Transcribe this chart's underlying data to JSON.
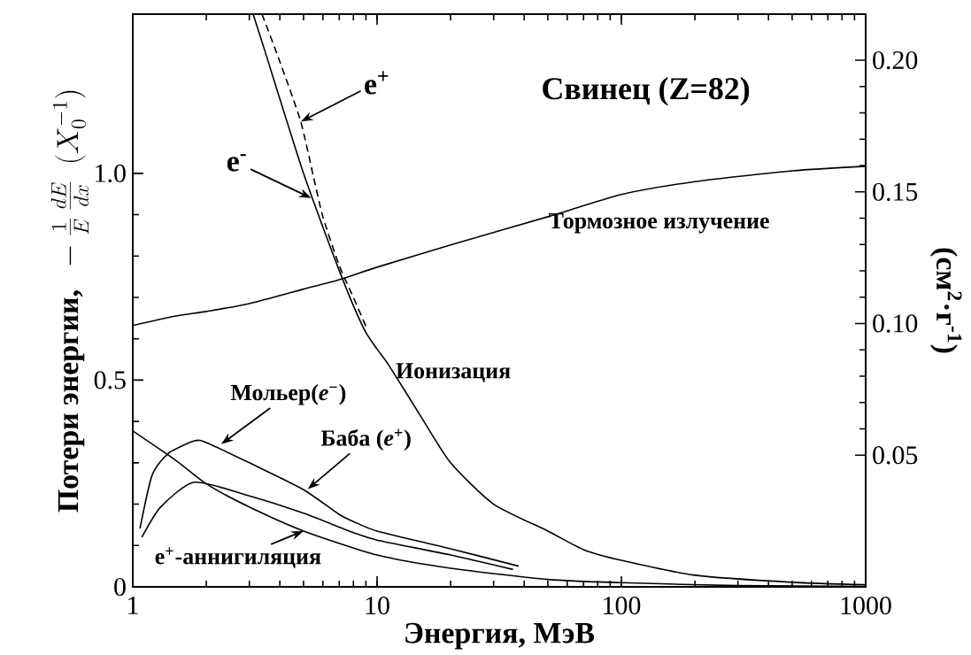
{
  "chart_data": {
    "type": "line",
    "title": "Свинец (Z=82)",
    "xlabel": "Энергия, МэВ",
    "ylabel": "\\mbox{\\bfseries Потери энергии,}\\ \\ -\\frac{1}{E}\\,\\frac{dE}{dx}\\ \\ (X_0^{-1})",
    "y2label": "(см$^{2}$·г$^{-1}$)",
    "log": "x",
    "xlim": [
      1,
      1000
    ],
    "xticks": [
      1,
      10,
      100,
      1000
    ],
    "ylim": [
      0,
      1.385
    ],
    "yticks": [
      0,
      0.5,
      {
        "value": 1,
        "label": "1.0"
      }
    ],
    "y2lim": [
      0,
      0.2175
    ],
    "y2ticks": [
      0.05,
      {
        "value": 0.1,
        "label": "0.10"
      },
      0.15,
      {
        "value": 0.2,
        "label": "0.20"
      }
    ],
    "series": [
      {
        "color": "#000000",
        "line_style": "solid",
        "x": [
          3.11,
          3.5,
          4,
          5,
          6,
          7,
          8,
          9,
          10,
          11.2,
          15,
          20,
          30,
          50,
          70,
          100,
          200,
          500,
          1000
        ],
        "values": [
          1.385,
          1.29,
          1.18,
          1.0,
          0.87,
          0.765,
          0.68,
          0.615,
          0.575,
          0.535,
          0.415,
          0.3,
          0.2,
          0.135,
          0.09,
          0.064,
          0.028,
          0.011,
          0.005
        ]
      },
      {
        "color": "#000000",
        "line_style": "dashed",
        "x": [
          3.38,
          4,
          4.87,
          5.5,
          6,
          7,
          8,
          9
        ],
        "values": [
          1.385,
          1.27,
          1.125,
          0.99,
          0.895,
          0.777,
          0.7,
          0.63
        ]
      },
      {
        "color": "#000000",
        "line_style": "solid",
        "x": [
          1,
          1.5,
          2,
          3,
          5,
          7,
          10,
          20,
          50,
          100,
          200,
          500,
          1000
        ],
        "values": [
          0.632,
          0.655,
          0.666,
          0.685,
          0.72,
          0.743,
          0.773,
          0.827,
          0.895,
          0.949,
          0.98,
          1.006,
          1.017
        ]
      },
      {
        "color": "#000000",
        "line_style": "solid",
        "x": [
          1.07,
          1.2,
          1.4,
          1.79,
          2,
          3,
          5,
          7,
          8,
          10,
          20,
          38
        ],
        "values": [
          0.141,
          0.27,
          0.323,
          0.353,
          0.349,
          0.3,
          0.235,
          0.175,
          0.158,
          0.135,
          0.092,
          0.05
        ]
      },
      {
        "color": "#000000",
        "line_style": "solid",
        "x": [
          1.09,
          1.3,
          1.79,
          3,
          5,
          8,
          10,
          20,
          36
        ],
        "values": [
          0.12,
          0.193,
          0.253,
          0.22,
          0.178,
          0.131,
          0.113,
          0.077,
          0.042
        ]
      },
      {
        "color": "#000000",
        "line_style": "solid",
        "x": [
          1,
          1.5,
          2,
          3,
          5,
          10,
          20,
          50,
          100,
          300,
          1000
        ],
        "values": [
          0.377,
          0.306,
          0.249,
          0.193,
          0.135,
          0.077,
          0.045,
          0.018,
          0.01,
          0.003,
          0.001
        ]
      }
    ],
    "annotations": [
      {
        "text": "e$^{+}$",
        "x": 4.87,
        "y": 1.125
      },
      {
        "text": "e$^{-}$",
        "x": 5.38,
        "y": 0.94
      },
      {
        "text": "Тормозное излучение",
        "x": 150,
        "y": 0.965
      },
      {
        "text": "Ионизация",
        "x": 11.2,
        "y": 0.535
      },
      {
        "text": "Мольер(*e*$^{−}$)",
        "x": 2.3,
        "y": 0.345
      },
      {
        "text": "Баба (*e*$^{+}$)",
        "x": 5.2,
        "y": 0.236
      },
      {
        "text": "e$^{+}$-аннигиляция",
        "x": 5,
        "y": 0.135
      }
    ]
  }
}
